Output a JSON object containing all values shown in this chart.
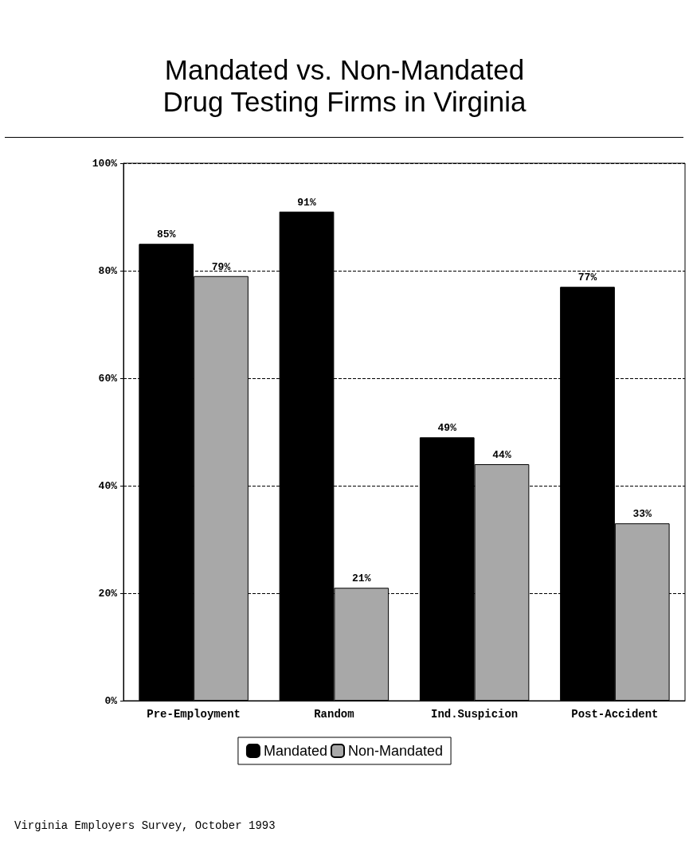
{
  "chart_data": {
    "type": "bar",
    "title": "Mandated vs. Non-Mandated\nDrug Testing Firms in Virginia",
    "categories": [
      "Pre-Employment",
      "Random",
      "Ind.Suspicion",
      "Post-Accident"
    ],
    "series": [
      {
        "name": "Mandated",
        "color": "#000000",
        "values": [
          85,
          91,
          49,
          77
        ],
        "value_labels": [
          "85%",
          "91%",
          "49%",
          "77%"
        ]
      },
      {
        "name": "Non-Mandated",
        "color": "#a8a8a8",
        "values": [
          79,
          21,
          44,
          33
        ],
        "value_labels": [
          "79%",
          "21%",
          "44%",
          "33%"
        ]
      }
    ],
    "ylim": [
      0,
      100
    ],
    "yticks": [
      {
        "value": 0,
        "label": "0%"
      },
      {
        "value": 20,
        "label": "20%"
      },
      {
        "value": 40,
        "label": "40%"
      },
      {
        "value": 60,
        "label": "60%"
      },
      {
        "value": 80,
        "label": "80%"
      },
      {
        "value": 100,
        "label": "100%"
      }
    ],
    "grid": "y",
    "legend": "bottom",
    "annotations": [
      "Virginia Employers Survey, October 1993"
    ]
  }
}
